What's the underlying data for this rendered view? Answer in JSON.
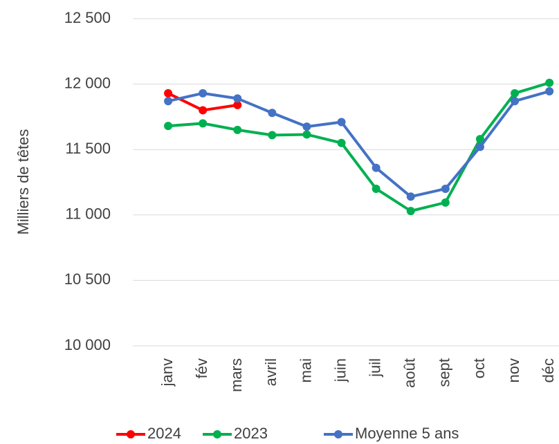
{
  "chart_data": {
    "type": "line",
    "y_label": "Milliers de têtes",
    "categories": [
      "janv",
      "fév",
      "mars",
      "avril",
      "mai",
      "juin",
      "juil",
      "août",
      "sept",
      "oct",
      "nov",
      "déc"
    ],
    "series": [
      {
        "name": "2024",
        "color": "#ff0000",
        "values": [
          11930,
          11800,
          11840,
          null,
          null,
          null,
          null,
          null,
          null,
          null,
          null,
          null
        ]
      },
      {
        "name": "2023",
        "color": "#00b050",
        "values": [
          11680,
          11700,
          11650,
          11610,
          11615,
          11550,
          11200,
          11030,
          11095,
          11580,
          11930,
          12010
        ]
      },
      {
        "name": "Moyenne 5 ans",
        "color": "#4472c4",
        "values": [
          11870,
          11930,
          11890,
          11780,
          11675,
          11710,
          11360,
          11140,
          11200,
          11520,
          11870,
          11945
        ]
      }
    ],
    "ylim": [
      10000,
      12500
    ],
    "yticks": [
      {
        "value": 10000,
        "label": "10 000"
      },
      {
        "value": 10500,
        "label": "10 500"
      },
      {
        "value": 11000,
        "label": "11 000"
      },
      {
        "value": 11500,
        "label": "11 500"
      },
      {
        "value": 12000,
        "label": "12 000"
      },
      {
        "value": 12500,
        "label": "12 500"
      }
    ],
    "grid": true,
    "legend": "bottom"
  }
}
